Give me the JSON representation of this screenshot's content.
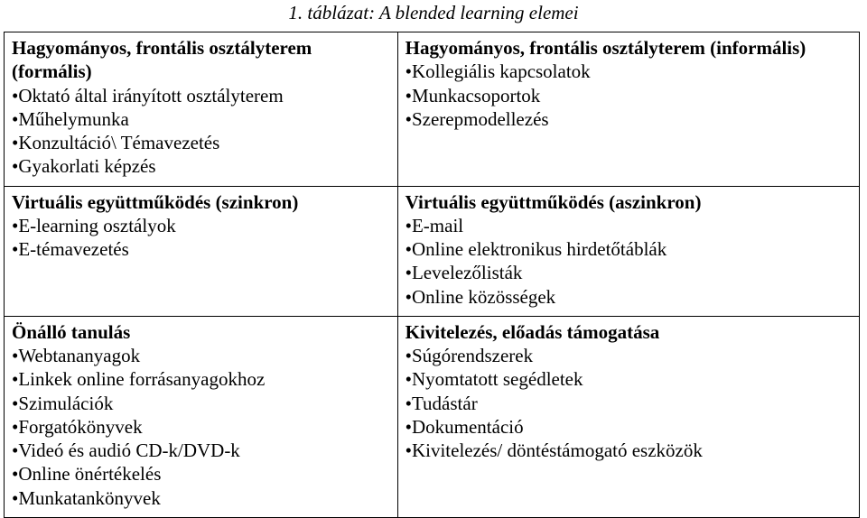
{
  "caption": "1. táblázat: A blended learning elemei",
  "cells": {
    "r1c1": {
      "title_lines": [
        "Hagyományos, frontális osztályterem",
        "(formális)"
      ],
      "items": [
        "Oktató által irányított osztályterem",
        "Műhelymunka",
        "Konzultáció\\ Témavezetés",
        "Gyakorlati képzés"
      ]
    },
    "r1c2": {
      "title_lines": [
        "Hagyományos, frontális osztályterem (informális)"
      ],
      "items": [
        "Kollegiális kapcsolatok",
        "Munkacsoportok",
        "Szerepmodellezés"
      ]
    },
    "r2c1": {
      "title_lines": [
        "Virtuális együttműködés (szinkron)"
      ],
      "items": [
        "E-learning osztályok",
        "E-témavezetés"
      ]
    },
    "r2c2": {
      "title_lines": [
        "Virtuális együttműködés (aszinkron)"
      ],
      "items": [
        "E-mail",
        "Online elektronikus hirdetőtáblák",
        "Levelezőlisták",
        "Online közösségek"
      ]
    },
    "r3c1": {
      "title_lines": [
        "Önálló tanulás"
      ],
      "items": [
        "Webtananyagok",
        "Linkek online forrásanyagokhoz",
        "Szimulációk",
        "Forgatókönyvek",
        "Videó és audió CD-k/DVD-k",
        "Online önértékelés",
        "Munkatankönyvek"
      ]
    },
    "r3c2": {
      "title_lines": [
        "Kivitelezés, előadás támogatása"
      ],
      "items": [
        "Súgórendszerek",
        "Nyomtatott segédletek",
        "Tudástár",
        "Dokumentáció",
        "Kivitelezés/ döntéstámogató eszközök"
      ]
    }
  }
}
